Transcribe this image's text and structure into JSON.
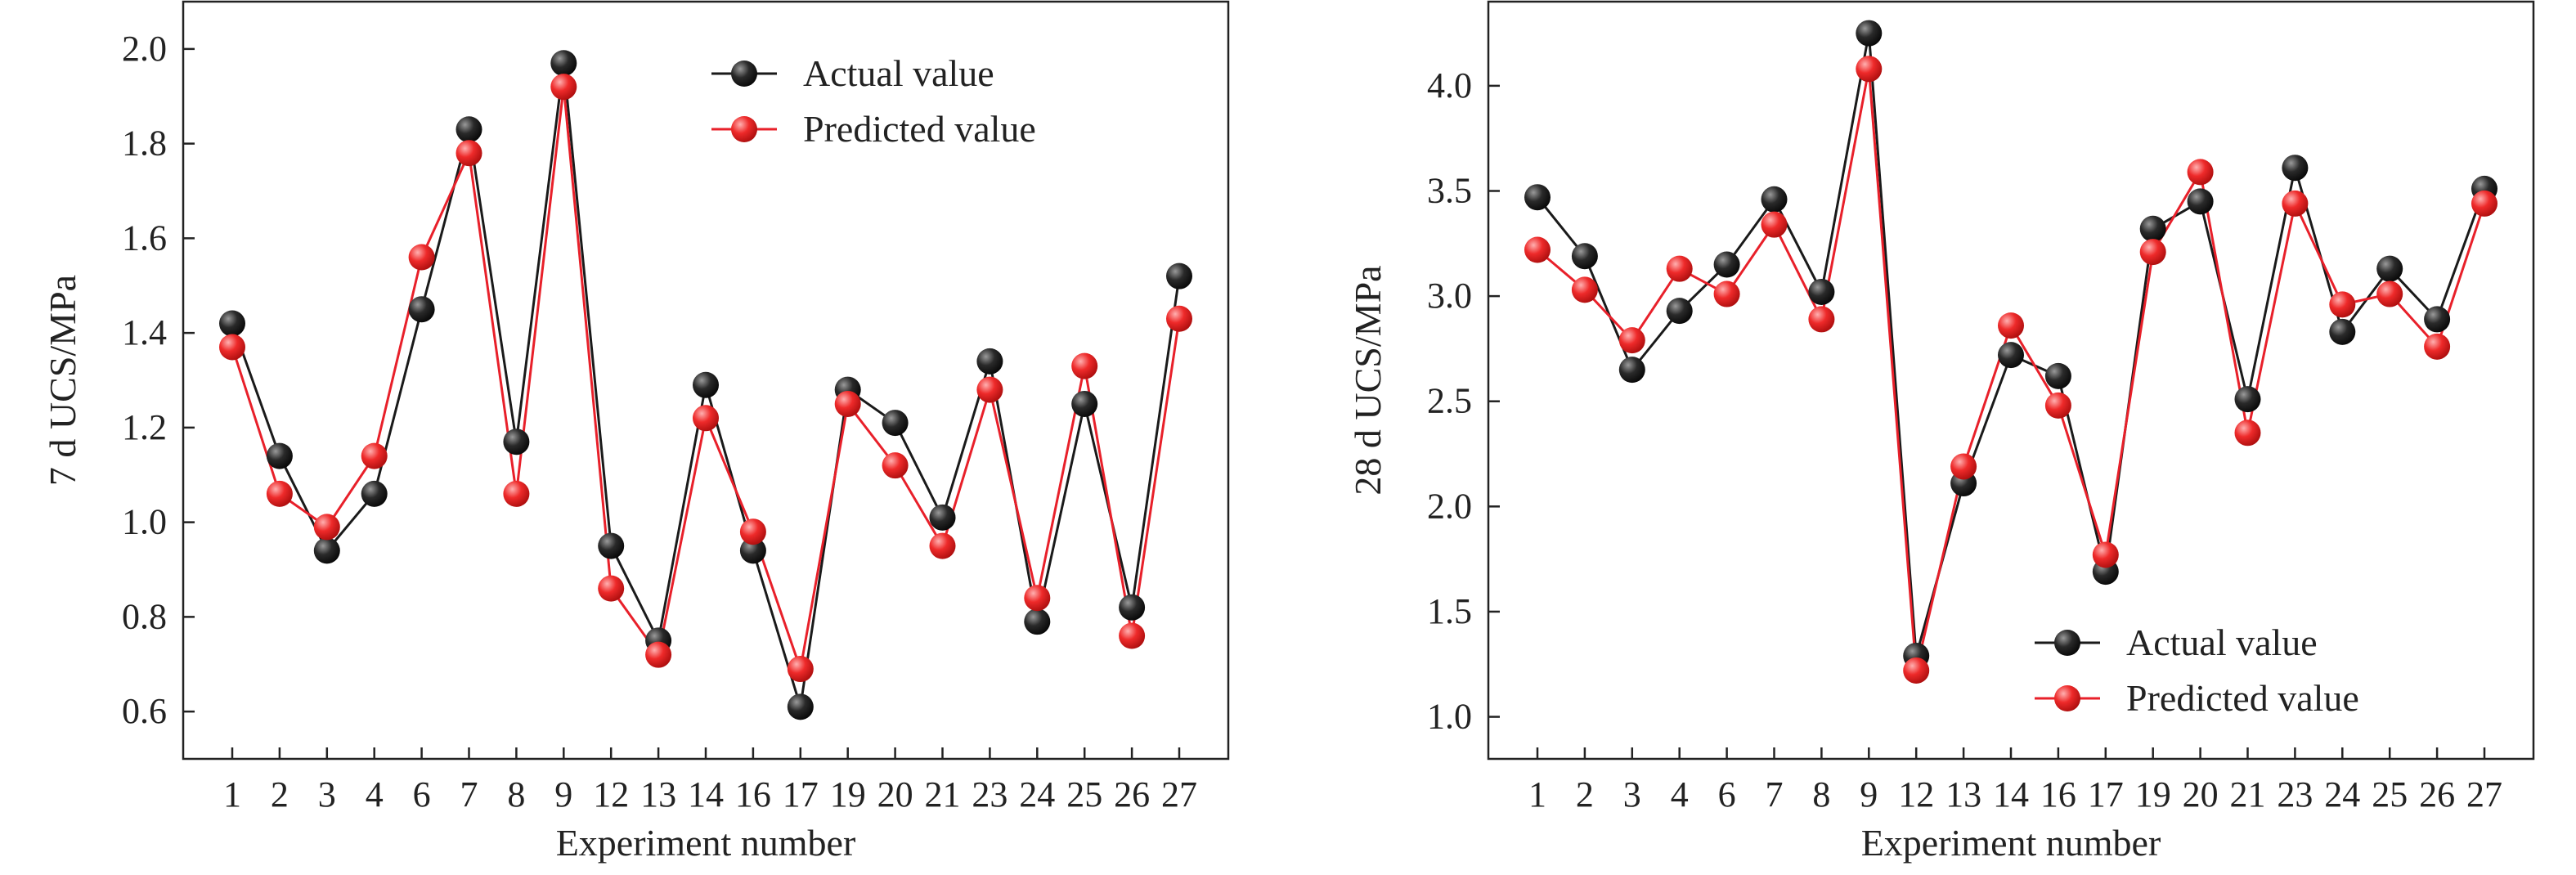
{
  "chart_data": [
    {
      "type": "line",
      "title": "",
      "xlabel": "Experiment number",
      "ylabel": "7 d UCS/MPa",
      "categories": [
        "1",
        "2",
        "3",
        "4",
        "6",
        "7",
        "8",
        "9",
        "12",
        "13",
        "14",
        "16",
        "17",
        "19",
        "20",
        "21",
        "23",
        "24",
        "25",
        "26",
        "27"
      ],
      "ylim": [
        0.5,
        2.1
      ],
      "yticks": [
        "0.6",
        "0.8",
        "1.0",
        "1.2",
        "1.4",
        "1.6",
        "1.8",
        "2.0"
      ],
      "ytick_values": [
        0.6,
        0.8,
        1.0,
        1.2,
        1.4,
        1.6,
        1.8,
        2.0
      ],
      "grid": false,
      "legend_position": "top-right",
      "series": [
        {
          "name": "Actual value",
          "color": "#1a1a1a",
          "values": [
            1.42,
            1.14,
            0.94,
            1.06,
            1.45,
            1.83,
            1.17,
            1.97,
            0.95,
            0.75,
            1.29,
            0.94,
            0.61,
            1.28,
            1.21,
            1.01,
            1.34,
            0.79,
            1.25,
            0.82,
            1.52
          ]
        },
        {
          "name": "Predicted value",
          "color": "#e8202a",
          "values": [
            1.37,
            1.06,
            0.99,
            1.14,
            1.56,
            1.78,
            1.06,
            1.92,
            0.86,
            0.72,
            1.22,
            0.98,
            0.69,
            1.25,
            1.12,
            0.95,
            1.28,
            0.84,
            1.33,
            0.76,
            1.43
          ]
        }
      ]
    },
    {
      "type": "line",
      "title": "",
      "xlabel": "Experiment number",
      "ylabel": "28 d UCS/MPa",
      "categories": [
        "1",
        "2",
        "3",
        "4",
        "6",
        "7",
        "8",
        "9",
        "12",
        "13",
        "14",
        "16",
        "17",
        "19",
        "20",
        "21",
        "23",
        "24",
        "25",
        "26",
        "27"
      ],
      "ylim": [
        0.8,
        4.4
      ],
      "yticks": [
        "1.0",
        "1.5",
        "2.0",
        "2.5",
        "3.0",
        "3.5",
        "4.0"
      ],
      "ytick_values": [
        1.0,
        1.5,
        2.0,
        2.5,
        3.0,
        3.5,
        4.0
      ],
      "grid": false,
      "legend_position": "bottom-right",
      "series": [
        {
          "name": "Actual value",
          "color": "#1a1a1a",
          "values": [
            3.47,
            3.19,
            2.65,
            2.93,
            3.15,
            3.46,
            3.02,
            4.25,
            1.29,
            2.11,
            2.72,
            2.62,
            1.69,
            3.32,
            3.45,
            2.51,
            3.61,
            2.83,
            3.13,
            2.89,
            3.51
          ]
        },
        {
          "name": "Predicted value",
          "color": "#e8202a",
          "values": [
            3.22,
            3.03,
            2.79,
            3.13,
            3.01,
            3.34,
            2.89,
            4.08,
            1.22,
            2.19,
            2.86,
            2.48,
            1.77,
            3.21,
            3.59,
            2.35,
            3.44,
            2.96,
            3.01,
            2.76,
            3.44
          ]
        }
      ]
    }
  ]
}
